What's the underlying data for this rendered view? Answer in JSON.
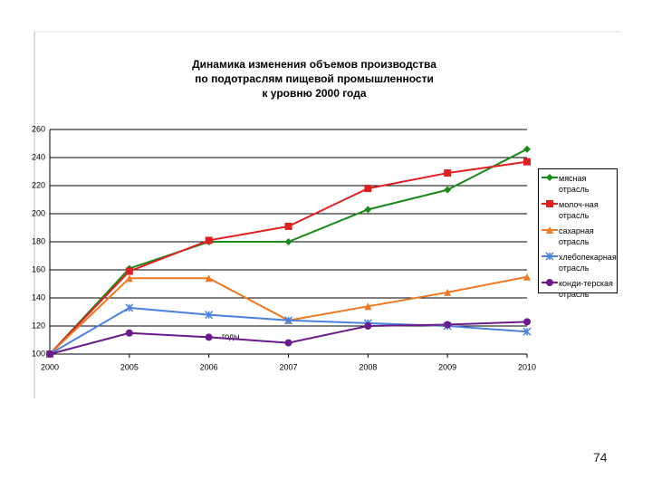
{
  "chart_data": {
    "type": "line",
    "title": [
      "Динамика изменения объемов производства",
      "по подотраслям пищевой промышленности",
      "к уровню 2000 года"
    ],
    "x_label": "годы",
    "categories": [
      "2000",
      "2005",
      "2006",
      "2007",
      "2008",
      "2009",
      "2010"
    ],
    "ylim": [
      100,
      260
    ],
    "yticks": [
      100,
      120,
      140,
      160,
      180,
      200,
      220,
      240,
      260
    ],
    "grid": true,
    "series": [
      {
        "name": "мясная отрасль",
        "color": "#1a8a1a",
        "marker": "diamond",
        "values": [
          100,
          161,
          180,
          180,
          203,
          217,
          246
        ]
      },
      {
        "name": "молоч-ная отрасль",
        "color": "#e02020",
        "marker": "square",
        "values": [
          100,
          159,
          181,
          191,
          218,
          229,
          237
        ]
      },
      {
        "name": "сахарная отрасль",
        "color": "#f07820",
        "marker": "triangle",
        "values": [
          100,
          154,
          154,
          124,
          134,
          144,
          155
        ]
      },
      {
        "name": "хлебопекарная отрасль",
        "color": "#4a80e0",
        "marker": "star",
        "values": [
          100,
          133,
          128,
          124,
          122,
          120,
          116
        ]
      },
      {
        "name": "конди-терская отрасль",
        "color": "#6a1a8a",
        "marker": "circle",
        "values": [
          100,
          115,
          112,
          108,
          120,
          121,
          123
        ]
      }
    ]
  },
  "page_number": "74"
}
